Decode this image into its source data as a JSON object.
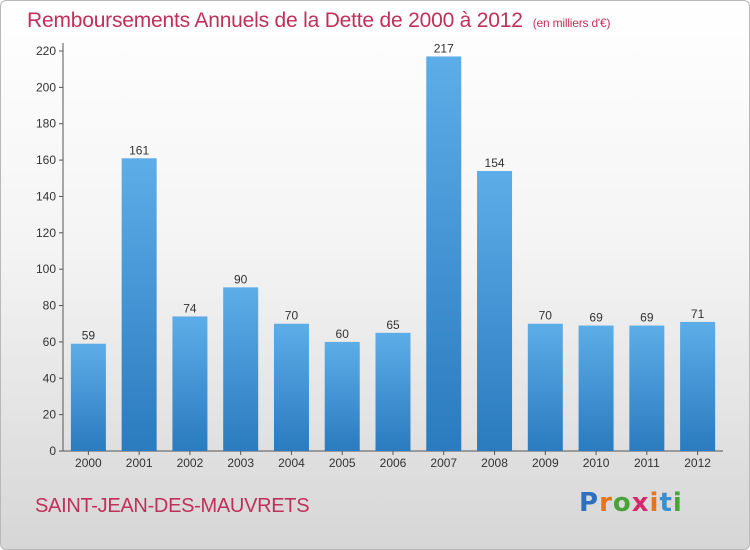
{
  "header": {
    "title": "Remboursements Annuels de la Dette de 2000 à 2012",
    "unit": "(en milliers d'€)"
  },
  "footer": {
    "commune": "SAINT-JEAN-DES-MAUVRETS",
    "logo_text": "Proxiti",
    "logo_colors": [
      "#2e6fc0",
      "#e8731a",
      "#4aa23a",
      "#d42a6b",
      "#e8731a",
      "#3a8fd0",
      "#4aa23a"
    ]
  },
  "colors": {
    "bar_top": "#5dade8",
    "bar_bottom": "#2a7bbf",
    "title": "#c0305a"
  },
  "chart_data": {
    "type": "bar",
    "title": "Remboursements Annuels de la Dette de 2000 à 2012",
    "xlabel": "",
    "ylabel": "",
    "categories": [
      "2000",
      "2001",
      "2002",
      "2003",
      "2004",
      "2005",
      "2006",
      "2007",
      "2008",
      "2009",
      "2010",
      "2011",
      "2012"
    ],
    "values": [
      59,
      161,
      74,
      90,
      70,
      60,
      65,
      217,
      154,
      70,
      69,
      69,
      71
    ],
    "ylim": [
      0,
      220
    ],
    "yticks": [
      0,
      20,
      40,
      60,
      80,
      100,
      120,
      140,
      160,
      180,
      200,
      220
    ],
    "grid": false,
    "data_labels": true
  }
}
